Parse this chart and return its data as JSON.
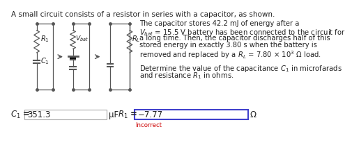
{
  "title": "A small circuit consists of a resistor in series with a capacitor, as shown.",
  "desc_lines": [
    "The capacitor stores 42.2 mJ of energy after a",
    "$V_{bat}$ = 15.5 V battery has been connected to the circuit for",
    "a long time. Then, the capacitor discharges half of this",
    "stored energy in exactly 3.80 s when the battery is",
    "removed and replaced by a $R_L$ = 7.80 × 10$^3$ Ω load.",
    "",
    "Determine the value of the capacitance $C_1$ in microfarads",
    "and resistance $R_1$ in ohms."
  ],
  "c1_label": "$C_1$ =",
  "c1_value": "351.3",
  "c1_unit": "μF",
  "r1_label": "$R_1$ =",
  "r1_value": "−7.77",
  "r1_unit": "Ω",
  "incorrect_text": "Incorrect",
  "bg_color": "#ffffff",
  "c1_box_color": "#cccccc",
  "r1_box_color": "#4040cc",
  "incorrect_color": "#cc0000",
  "text_color": "#222222",
  "circuit_color": "#555555",
  "title_fontsize": 7.5,
  "body_fontsize": 7.2,
  "answer_fontsize": 8.5
}
